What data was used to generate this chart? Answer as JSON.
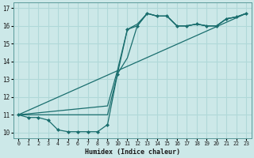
{
  "xlabel": "Humidex (Indice chaleur)",
  "bg_color": "#cce8e8",
  "grid_color": "#b0d8d8",
  "line_color": "#1a6e6e",
  "xlim": [
    -0.5,
    23.5
  ],
  "ylim": [
    9.7,
    17.3
  ],
  "xticks": [
    0,
    1,
    2,
    3,
    4,
    5,
    6,
    7,
    8,
    9,
    10,
    11,
    12,
    13,
    14,
    15,
    16,
    17,
    18,
    19,
    20,
    21,
    22,
    23
  ],
  "yticks": [
    10,
    11,
    12,
    13,
    14,
    15,
    16,
    17
  ],
  "line1_x": [
    0,
    1,
    2,
    3,
    4,
    5,
    6,
    7,
    8,
    9,
    10,
    11,
    12,
    13,
    14,
    15,
    16,
    17,
    18,
    19,
    20,
    21,
    22,
    23
  ],
  "line1_y": [
    11.0,
    10.85,
    10.85,
    10.7,
    10.15,
    10.05,
    10.05,
    10.05,
    10.05,
    10.45,
    13.3,
    15.8,
    16.0,
    16.7,
    16.55,
    16.55,
    16.0,
    16.0,
    16.1,
    16.0,
    16.0,
    16.4,
    16.5,
    16.7
  ],
  "line2_x": [
    0,
    9,
    10,
    11,
    12,
    13,
    14,
    15,
    16,
    17,
    18,
    19,
    20,
    21,
    22,
    23
  ],
  "line2_y": [
    11.0,
    11.0,
    13.3,
    14.2,
    16.0,
    16.7,
    16.55,
    16.55,
    16.0,
    16.0,
    16.1,
    16.0,
    16.0,
    16.4,
    16.5,
    16.7
  ],
  "line3_x": [
    0,
    9,
    10,
    11,
    12,
    13,
    14,
    15,
    16,
    17,
    18,
    19,
    20,
    21,
    22,
    23
  ],
  "line3_y": [
    11.0,
    11.5,
    13.5,
    15.8,
    16.1,
    16.7,
    16.55,
    16.55,
    16.0,
    16.0,
    16.1,
    16.0,
    16.0,
    16.4,
    16.5,
    16.7
  ],
  "line4_x": [
    0,
    23
  ],
  "line4_y": [
    11.0,
    16.7
  ]
}
